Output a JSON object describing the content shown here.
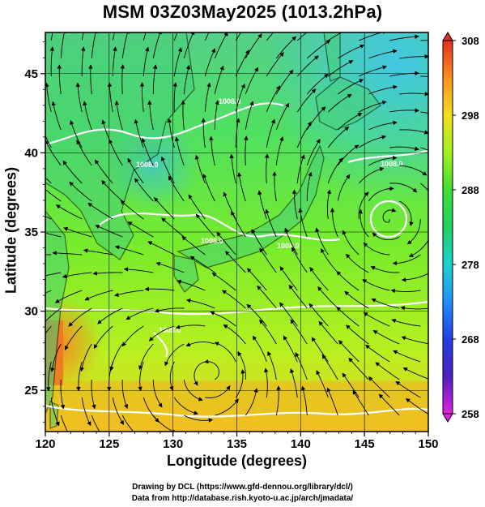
{
  "title": "MSM 03Z03May2025 (1013.2hPa)",
  "axes": {
    "xlabel": "Longitude (degrees)",
    "ylabel": "Latitude  (degrees)",
    "xticks": [
      120,
      125,
      130,
      135,
      140,
      145,
      150
    ],
    "yticks": [
      25,
      30,
      35,
      40,
      45
    ],
    "xlim": [
      120,
      150
    ],
    "ylim": [
      22.4,
      47.6
    ]
  },
  "colorbar": {
    "ticks": [
      308,
      298,
      288,
      278,
      268,
      258
    ],
    "range": [
      258,
      308
    ],
    "colors": [
      "#e020e0",
      "#3030d0",
      "#2070ff",
      "#20d0d0",
      "#20d050",
      "#60e030",
      "#b0f020",
      "#ffe020",
      "#ff9020",
      "#e03020"
    ]
  },
  "contour_labels": [
    "1008.0",
    "1008.0",
    "1008.0",
    "1008.0",
    "1008.0",
    "1008.0"
  ],
  "credits": {
    "line1": "Drawing by DCL (https://www.gfd-dennou.org/library/dcl/)",
    "line2": "Data from http://database.rish.kyoto-u.ac.jp/arch/jmadata/"
  }
}
